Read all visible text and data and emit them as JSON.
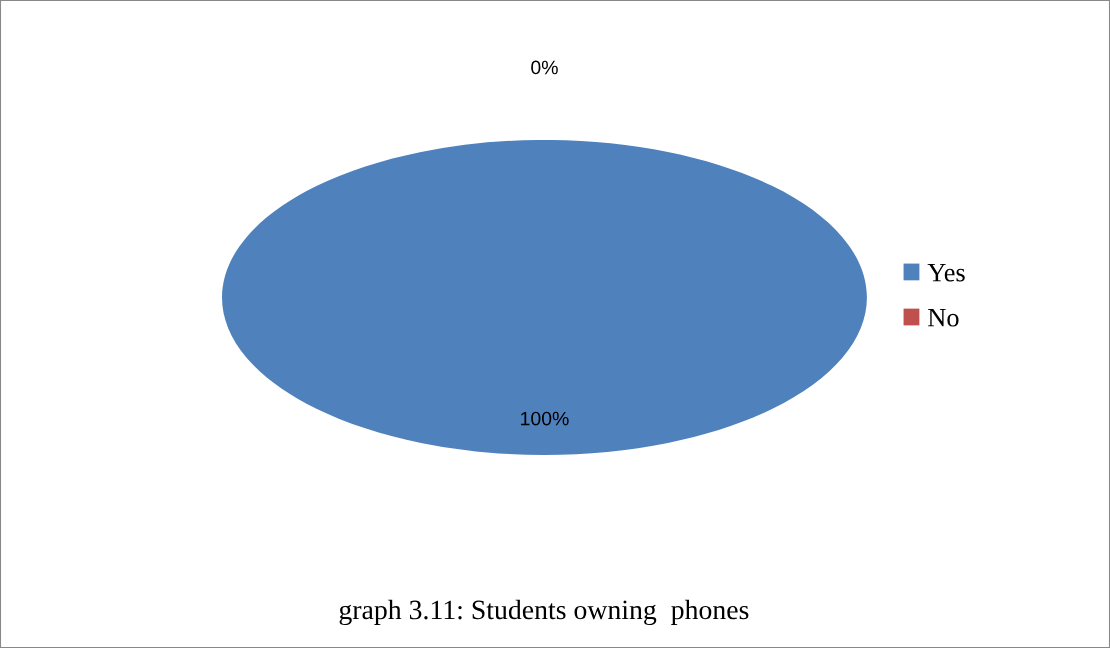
{
  "chart_data": {
    "type": "pie",
    "categories": [
      "Yes",
      "No"
    ],
    "values": [
      100,
      0
    ],
    "colors": [
      "#4f81bd",
      "#c0504d"
    ],
    "value_labels": [
      "100%",
      "0%"
    ],
    "legend": "right",
    "annotations": [
      "graph 3.11: Students owning  phones"
    ]
  }
}
